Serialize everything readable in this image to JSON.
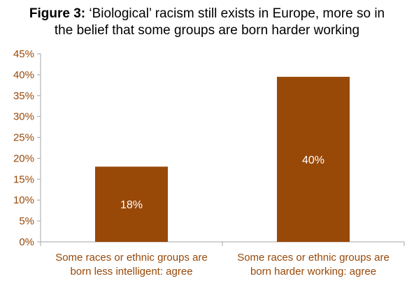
{
  "title": {
    "label": "Figure 3:",
    "line1": "‘Biological’ racism still exists in Europe, more so in",
    "line2": "the belief that some groups are born harder working"
  },
  "colors": {
    "bar": "#984807",
    "axis_text": "#984807",
    "axis_line": "#a6a6a6"
  },
  "chart_data": {
    "type": "bar",
    "categories": [
      [
        "Some races or ethnic groups are",
        "born less intelligent: agree"
      ],
      [
        "Some races or ethnic groups are",
        "born harder working: agree"
      ]
    ],
    "values": [
      18,
      39.5
    ],
    "data_labels": [
      "18%",
      "40%"
    ],
    "ylim": [
      0,
      45
    ],
    "yticks": [
      0,
      5,
      10,
      15,
      20,
      25,
      30,
      35,
      40,
      45
    ],
    "ytick_labels": [
      "0%",
      "5%",
      "10%",
      "15%",
      "20%",
      "25%",
      "30%",
      "35%",
      "40%",
      "45%"
    ],
    "grid": false,
    "legend": "none"
  }
}
